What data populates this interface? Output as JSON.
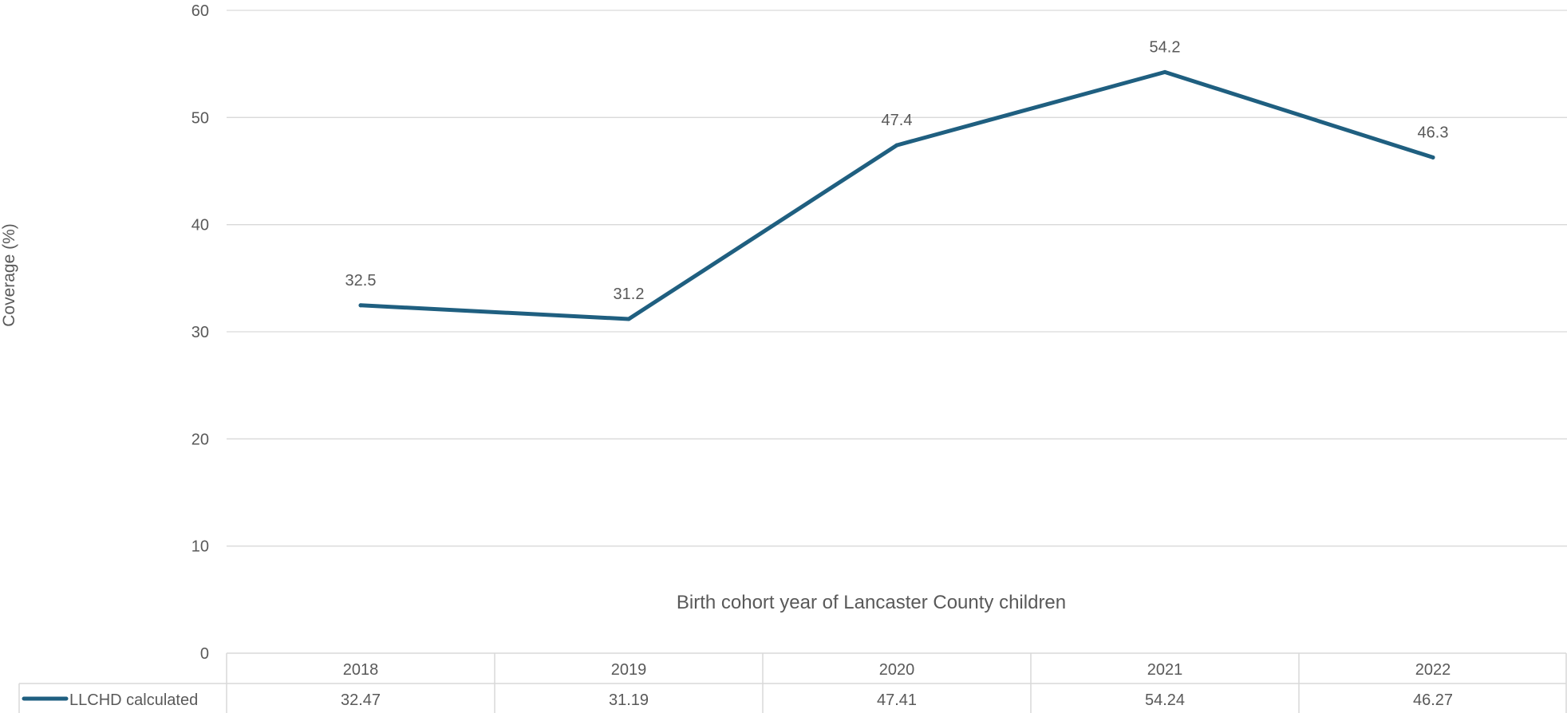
{
  "chart_data": {
    "type": "line",
    "title": "",
    "xlabel": "Birth cohort year of Lancaster County children",
    "ylabel": "Coverage (%)",
    "ylim": [
      0,
      60
    ],
    "yticks": [
      "0",
      "10",
      "20",
      "30",
      "40",
      "50",
      "60"
    ],
    "categories": [
      "2018",
      "2019",
      "2020",
      "2021",
      "2022"
    ],
    "series": [
      {
        "name": "LLCHD calculated",
        "values": [
          32.47,
          31.19,
          47.41,
          54.24,
          46.27
        ],
        "data_labels": [
          "32.5",
          "31.2",
          "47.4",
          "54.2",
          "46.3"
        ],
        "table_values": [
          "32.47",
          "31.19",
          "47.41",
          "54.24",
          "46.27"
        ],
        "color": "#1f5f80"
      }
    ],
    "grid": true,
    "legend": "data table",
    "colors": {
      "line": "#1f5f80",
      "grid": "#d9d9d9",
      "text": "#595959"
    }
  }
}
